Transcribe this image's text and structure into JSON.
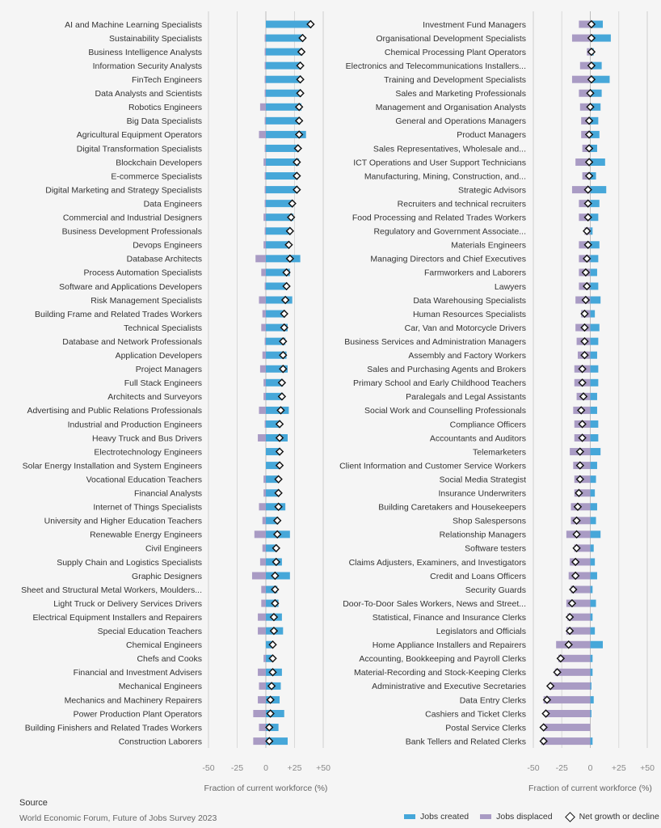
{
  "colors": {
    "created": "#46a7d9",
    "displaced": "#a99bc4",
    "marker_fill": "#ffffff",
    "marker_stroke": "#111111",
    "grid": "#d9d9d9"
  },
  "source": {
    "title": "Source",
    "text": "World Economic Forum, Future of Jobs Survey 2023"
  },
  "legend": {
    "created": "Jobs created",
    "displaced": "Jobs displaced",
    "net": "Net growth or decline"
  },
  "chart_data": [
    {
      "type": "bar",
      "xlabel": "Fraction of current workforce (%)",
      "xlim": [
        -50,
        50
      ],
      "ticks": [
        -50,
        -25,
        0,
        25,
        50
      ],
      "tick_labels": [
        "-50",
        "-25",
        "0",
        "+25",
        "+50"
      ],
      "grid": true,
      "categories": [
        "AI and Machine Learning Specialists",
        "Sustainability Specialists",
        "Business Intelligence Analysts",
        "Information Security Analysts",
        "FinTech Engineers",
        "Data Analysts and Scientists",
        "Robotics Engineers",
        "Big Data Specialists",
        "Agricultural Equipment Operators",
        "Digital Transformation Specialists",
        "Blockchain Developers",
        "E-commerce Specialists",
        "Digital Marketing and Strategy Specialists",
        "Data Engineers",
        "Commercial and Industrial Designers",
        "Business Development Professionals",
        "Devops Engineers",
        "Database Architects",
        "Process Automation Specialists",
        "Software and Applications Developers",
        "Risk Management Specialists",
        "Building Frame and Related Trades Workers",
        "Technical Specialists",
        "Database and Network Professionals",
        "Application Developers",
        "Project Managers",
        "Full Stack Engineers",
        "Architects and Surveyors",
        "Advertising and Public Relations Professionals",
        "Industrial and Production Engineers",
        "Heavy Truck and Bus Drivers",
        "Electrotechnology Engineers",
        "Solar Energy Installation and System Engineers",
        "Vocational Education Teachers",
        "Financial Analysts",
        "Internet of Things Specialists",
        "University and Higher Education Teachers",
        "Renewable Energy Engineers",
        "Civil Engineers",
        "Supply Chain and Logistics Specialists",
        "Graphic Designers",
        "Sheet and Structural Metal Workers, Moulders...",
        "Light Truck or Delivery Services Drivers",
        "Electrical Equipment Installers and Repairers",
        "Special Education Teachers",
        "Chemical Engineers",
        "Chefs and Cooks",
        "Financial and Investment Advisers",
        "Mechanical Engineers",
        "Mechanics and Machinery Repairers",
        "Power Production Plant Operators",
        "Building Finishers and Related Trades Workers",
        "Construction Laborers"
      ],
      "series": [
        {
          "name": "Jobs created",
          "values": [
            40,
            33,
            32,
            31,
            31,
            31,
            31,
            30,
            35,
            29,
            29,
            28,
            28,
            24,
            24,
            22,
            21,
            30,
            21,
            19,
            23,
            17,
            19,
            17,
            18,
            19,
            15,
            15,
            20,
            13,
            19,
            12,
            12,
            11,
            12,
            17,
            11,
            21,
            10,
            14,
            21,
            10,
            11,
            14,
            15,
            6,
            6,
            14,
            13,
            12,
            16,
            11,
            19
          ]
        },
        {
          "name": "Jobs displaced",
          "values": [
            0,
            -1,
            -1,
            -1,
            -1,
            -1,
            -5,
            -1,
            -6,
            -1,
            -2,
            -1,
            -1,
            -1,
            -2,
            -1,
            -2,
            -9,
            -4,
            -1,
            -6,
            -3,
            -4,
            -1,
            -3,
            -5,
            -2,
            -2,
            -6,
            -1,
            -7,
            0,
            0,
            -2,
            -2,
            -6,
            -3,
            -10,
            -3,
            -5,
            -12,
            -4,
            -4,
            -7,
            -7,
            0,
            -2,
            -7,
            -6,
            -7,
            -11,
            -6,
            -11
          ]
        },
        {
          "name": "Net growth or decline",
          "values": [
            39,
            32,
            31,
            30,
            30,
            30,
            29,
            29,
            29,
            28,
            27,
            27,
            27,
            23,
            22,
            21,
            20,
            21,
            18,
            18,
            17,
            16,
            16,
            15,
            15,
            15,
            14,
            14,
            13,
            12,
            12,
            12,
            12,
            11,
            11,
            11,
            10,
            10,
            9,
            9,
            8,
            8,
            8,
            7,
            7,
            6,
            6,
            6,
            5,
            4,
            4,
            3,
            3
          ]
        }
      ]
    },
    {
      "type": "bar",
      "xlabel": "Fraction of current workforce (%)",
      "xlim": [
        -50,
        50
      ],
      "ticks": [
        -50,
        -25,
        0,
        25,
        50
      ],
      "tick_labels": [
        "-50",
        "-25",
        "0",
        "+25",
        "+50"
      ],
      "grid": true,
      "categories": [
        "Investment Fund Managers",
        "Organisational Development Specialists",
        "Chemical Processing Plant Operators",
        "Electronics and Telecommunications Installers...",
        "Training and Development Specialists",
        "Sales and Marketing Professionals",
        "Management and Organisation Analysts",
        "General and Operations Managers",
        "Product Managers",
        "Sales Representatives, Wholesale and...",
        "ICT Operations and User Support Technicians",
        "Manufacturing, Mining, Construction, and...",
        "Strategic Advisors",
        "Recruiters and technical recruiters",
        "Food Processing and Related Trades Workers",
        "Regulatory and Government Associate...",
        "Materials Engineers",
        "Managing Directors and Chief Executives",
        "Farmworkers and Laborers",
        "Lawyers",
        "Data Warehousing Specialists",
        "Human Resources Specialists",
        "Car, Van and Motorcycle Drivers",
        "Business Services and Administration Managers",
        "Assembly and Factory Workers",
        "Sales and Purchasing Agents and Brokers",
        "Primary School and Early Childhood Teachers",
        "Paralegals and Legal Assistants",
        "Social Work and Counselling Professionals",
        "Compliance Officers",
        "Accountants and Auditors",
        "Telemarketers",
        "Client Information and Customer Service Workers",
        "Social Media Strategist",
        "Insurance Underwriters",
        "Building Caretakers and Housekeepers",
        "Shop Salespersons",
        "Relationship Managers",
        "Software testers",
        "Claims Adjusters, Examiners, and Investigators",
        "Credit and Loans Officers",
        "Security Guards",
        "Door-To-Door Sales Workers, News and Street...",
        "Statistical, Finance and Insurance Clerks",
        "Legislators and Officials",
        "Home Appliance Installers and Repairers",
        "Accounting, Bookkeeping and Payroll Clerks",
        "Material-Recording and Stock-Keeping Clerks",
        "Administrative and Executive Secretaries",
        "Data Entry Clerks",
        "Cashiers and Ticket Clerks",
        "Postal Service Clerks",
        "Bank Tellers and Related Clerks"
      ],
      "series": [
        {
          "name": "Jobs created",
          "values": [
            11,
            18,
            3,
            10,
            17,
            10,
            9,
            7,
            8,
            6,
            13,
            5,
            14,
            8,
            7,
            2,
            8,
            7,
            6,
            7,
            9,
            4,
            8,
            7,
            6,
            7,
            7,
            6,
            6,
            7,
            7,
            9,
            6,
            5,
            4,
            6,
            5,
            9,
            3,
            4,
            6,
            2,
            5,
            2,
            4,
            11,
            2,
            2,
            1,
            3,
            1,
            0,
            2
          ]
        },
        {
          "name": "Jobs displaced",
          "values": [
            -10,
            -16,
            -3,
            -9,
            -16,
            -10,
            -9,
            -8,
            -8,
            -7,
            -13,
            -7,
            -16,
            -10,
            -10,
            -5,
            -10,
            -10,
            -10,
            -10,
            -13,
            -8,
            -13,
            -12,
            -11,
            -14,
            -14,
            -12,
            -15,
            -14,
            -14,
            -18,
            -15,
            -14,
            -14,
            -17,
            -17,
            -21,
            -14,
            -18,
            -19,
            -17,
            -21,
            -20,
            -21,
            -30,
            -28,
            -31,
            -36,
            -41,
            -40,
            -41,
            -43
          ]
        },
        {
          "name": "Net growth or decline",
          "values": [
            1,
            1,
            1,
            1,
            1,
            0,
            0,
            -1,
            -1,
            -1,
            -1,
            -1,
            -2,
            -2,
            -2,
            -3,
            -2,
            -3,
            -4,
            -3,
            -4,
            -5,
            -5,
            -5,
            -5,
            -7,
            -7,
            -6,
            -8,
            -7,
            -7,
            -9,
            -9,
            -9,
            -10,
            -11,
            -12,
            -12,
            -12,
            -13,
            -13,
            -15,
            -16,
            -18,
            -18,
            -19,
            -26,
            -29,
            -35,
            -38,
            -39,
            -41,
            -41
          ]
        }
      ]
    }
  ]
}
